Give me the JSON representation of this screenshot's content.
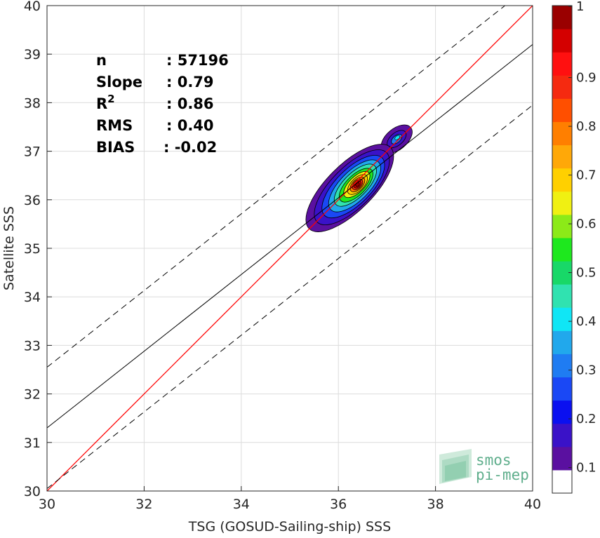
{
  "chart_data": {
    "type": "scatter",
    "subtype": "2d-density-contour",
    "xlabel": "TSG (GOSUD-Sailing-ship) SSS",
    "ylabel": "Satellite SSS",
    "xlim": [
      30,
      40
    ],
    "ylim": [
      30,
      40
    ],
    "xticks": [
      "30",
      "32",
      "34",
      "36",
      "38",
      "40"
    ],
    "yticks": [
      "30",
      "31",
      "32",
      "33",
      "34",
      "35",
      "36",
      "37",
      "38",
      "39",
      "40"
    ],
    "grid": true,
    "stats": [
      {
        "label": "n",
        "value": ": 57196"
      },
      {
        "label": "Slope",
        "value": ": 0.79"
      },
      {
        "label": "R",
        "sup": "2",
        "value": ": 0.86"
      },
      {
        "label": "RMS",
        "value": ": 0.40"
      },
      {
        "label": "BIAS",
        "value": ": -0.02"
      }
    ],
    "lines": {
      "identity": {
        "color": "#ff0000",
        "slope": 1,
        "intercept": 0
      },
      "regression": {
        "color": "#000000",
        "slope": 0.79,
        "intercept": 7.6
      },
      "bounds_offset": 1.25
    },
    "density_center": [
      36.35,
      36.3
    ],
    "secondary_center": [
      37.2,
      37.25
    ],
    "colorbar": {
      "ticks": [
        "0.1",
        "0.2",
        "0.3",
        "0.4",
        "0.5",
        "0.6",
        "0.7",
        "0.8",
        "0.9",
        "1"
      ],
      "range": [
        0,
        1
      ],
      "colors": [
        "#ffffff",
        "#5a10a0",
        "#3a12c8",
        "#0a10f0",
        "#1a48f5",
        "#1f7cf2",
        "#21a8ec",
        "#10e6f5",
        "#30e2b0",
        "#18d868",
        "#1ee81e",
        "#8cea18",
        "#f0f012",
        "#ffd000",
        "#ffa808",
        "#ff7f00",
        "#ff4f00",
        "#f52a10",
        "#ff1010",
        "#d40000",
        "#9a0000"
      ]
    },
    "logo": {
      "line1": "smos",
      "line2": "pi-mep"
    }
  }
}
